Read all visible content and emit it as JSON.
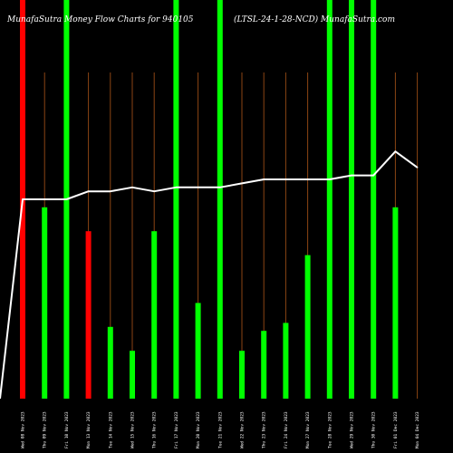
{
  "header": {
    "left": "MunafaSutra  Money Flow  Charts for 940105",
    "right": "(LTSL-24-1-28-NCD) MunafaSutra.com"
  },
  "colors": {
    "background": "#000000",
    "up": "#00ff00",
    "down": "#ff0000",
    "stem": "#8b4513",
    "line": "#ffffff"
  },
  "chart_data": {
    "type": "bar",
    "title": "MunafaSutra  Money Flow  Charts for 940105",
    "subtitle": "(LTSL-24-1-28-NCD) MunafaSutra.com",
    "categories": [
      "Wed 08 Nov 2023",
      "Thu 09 Nov 2023",
      "Fri 10 Nov 2023",
      "Mon 13 Nov 2023",
      "Tue 14 Nov 2023",
      "Wed 15 Nov 2023",
      "Thu 16 Nov 2023",
      "Fri 17 Nov 2023",
      "Mon 20 Nov 2023",
      "Tue 21 Nov 2023",
      "Wed 22 Nov 2023",
      "Thu 23 Nov 2023",
      "Fri 24 Nov 2023",
      "Mon 27 Nov 2023",
      "Tue 28 Nov 2023",
      "Wed 29 Nov 2023",
      "Thu 30 Nov 2023",
      "Fri 01 Dec 2023",
      "Mon 04 Dec 2023"
    ],
    "series": [
      {
        "values": [
          100,
          48,
          100,
          42,
          18,
          12,
          42,
          100,
          24,
          100,
          12,
          17,
          19,
          36,
          100,
          100,
          100,
          48,
          0
        ],
        "colors": [
          "down",
          "up",
          "up",
          "down",
          "up",
          "up",
          "up",
          "up",
          "up",
          "up",
          "up",
          "up",
          "up",
          "up",
          "up",
          "up",
          "up",
          "up",
          "up"
        ]
      },
      {
        "values": [
          50,
          50,
          50,
          52,
          52,
          53,
          52,
          53,
          53,
          53,
          54,
          55,
          55,
          55,
          55,
          56,
          56,
          62,
          58
        ]
      }
    ],
    "line_start_value": 0,
    "ylim": [
      0,
      100
    ]
  }
}
